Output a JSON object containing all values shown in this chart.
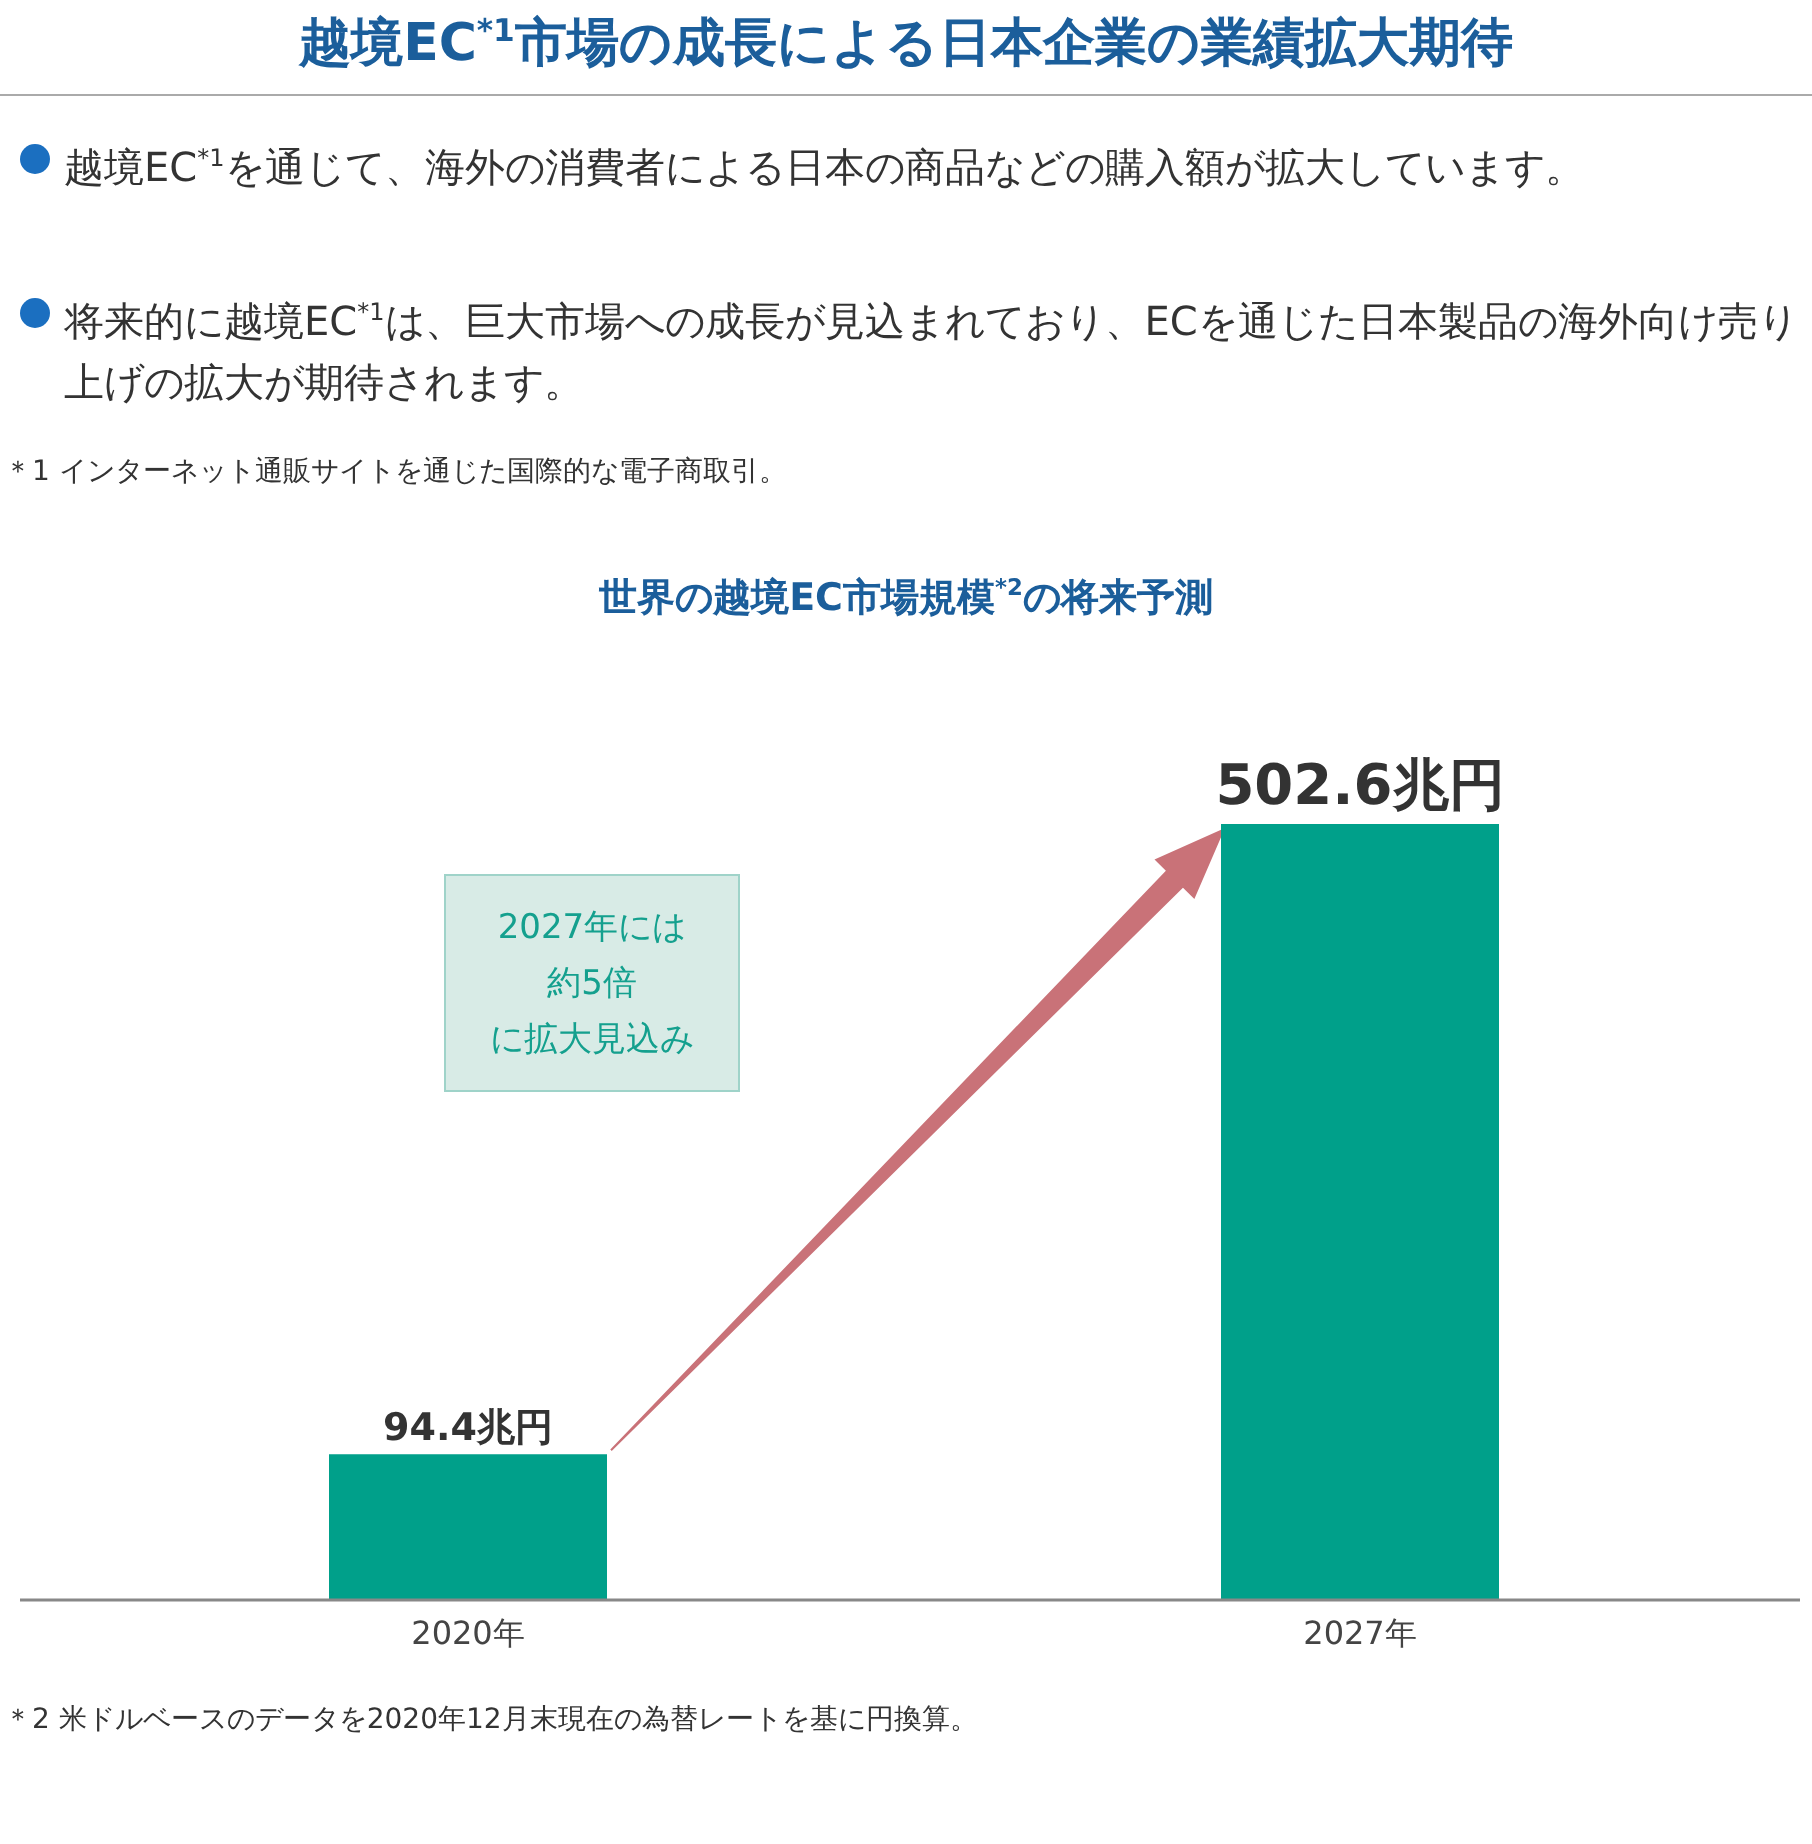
{
  "chart_data": {
    "type": "bar",
    "title": "越境EC$^{*1}$市場の成長による日本企業の業績拡大期待",
    "subtitle": "世界の越境EC市場規模$^{*2}$の将来予測",
    "categories": [
      "2020年",
      "2027年"
    ],
    "values": [
      94.4,
      502.6
    ],
    "value_labels": [
      "94.4兆円",
      "502.6兆円"
    ],
    "color": "#00a08a",
    "annotations": [
      "越境EC$^{*1}$を通じて、海外の消費者による日本の商品などの購入額が拡大しています。",
      "将来的に越境EC$^{*1}$は、巨大市場への成長が見込まれており、ECを通じた日本製品の海外向け売り上げの拡大が期待されます。",
      "＊1 インターネット通販サイトを通じた国際的な電子商取引。",
      "2027年には",
      "約5倍",
      "に拡大見込み",
      "＊2 米ドルベースのデータを2020年12月末現在の為替レートを基に円換算。"
    ]
  }
}
